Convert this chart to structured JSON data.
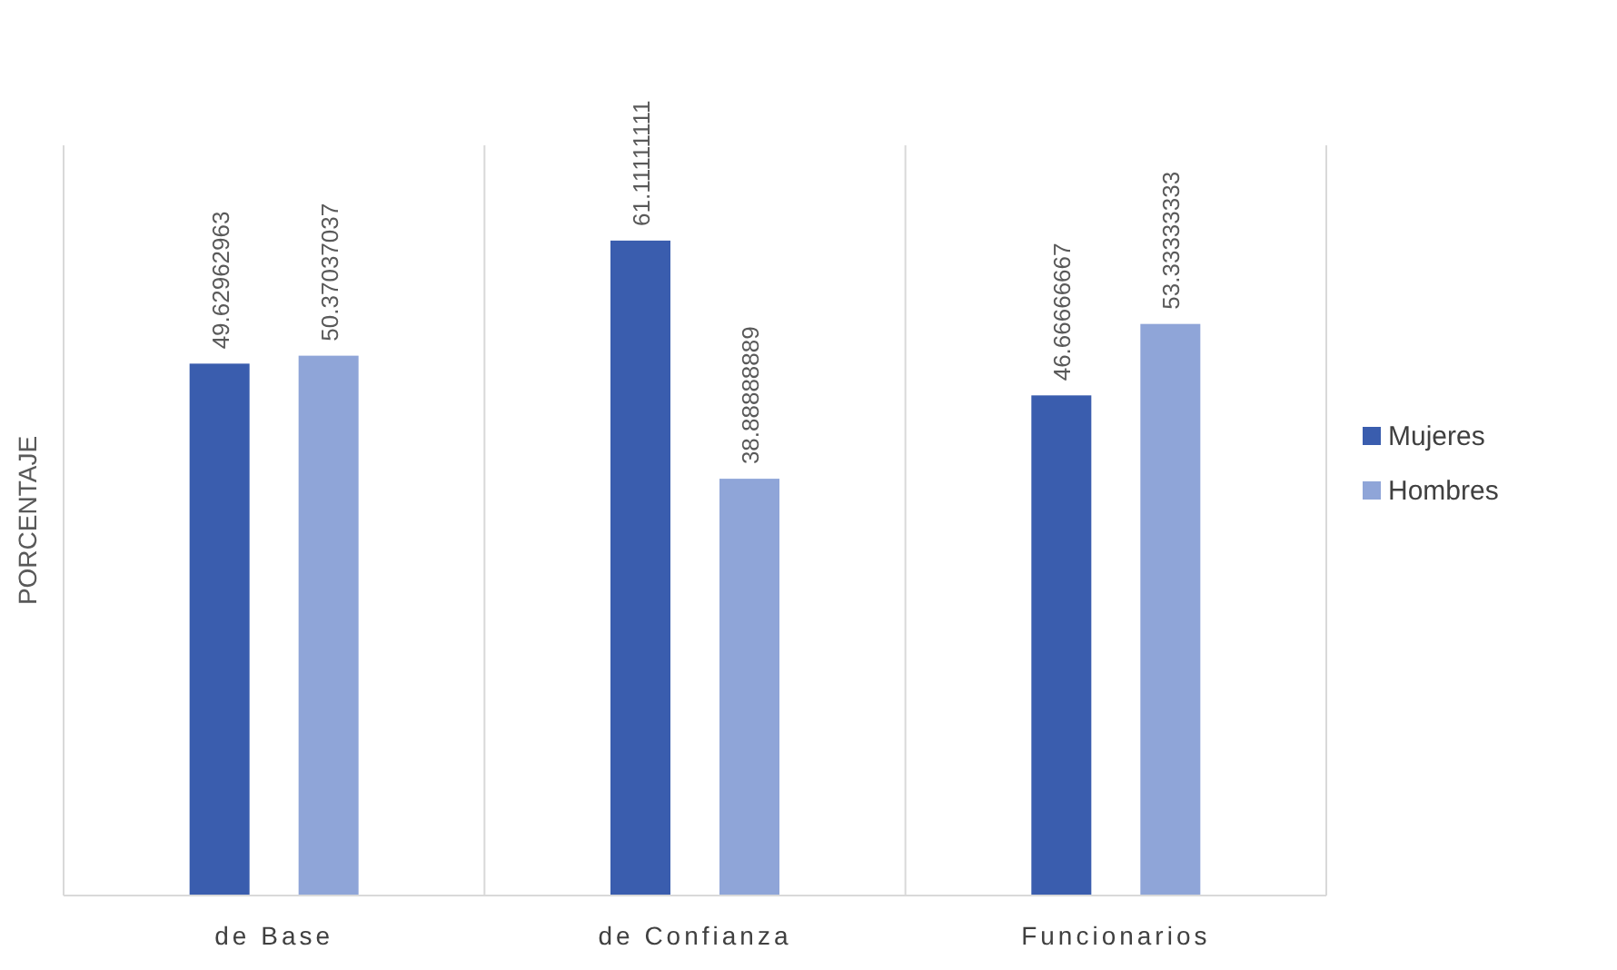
{
  "chart_data": {
    "type": "bar",
    "ylabel": "PORCENTAJE",
    "categories": [
      "de Base",
      "de Confianza",
      "Funcionarios"
    ],
    "series": [
      {
        "name": "Mujeres",
        "color": "#3a5dae",
        "values": [
          49.62962963,
          61.11111111,
          46.66666667
        ]
      },
      {
        "name": "Hombres",
        "color": "#8fa5d8",
        "values": [
          50.37037037,
          38.88888889,
          53.33333333
        ]
      }
    ],
    "ylim": [
      0,
      70
    ],
    "data_labels": true,
    "grid": "x",
    "legend": "right",
    "tick_labels": "x"
  }
}
